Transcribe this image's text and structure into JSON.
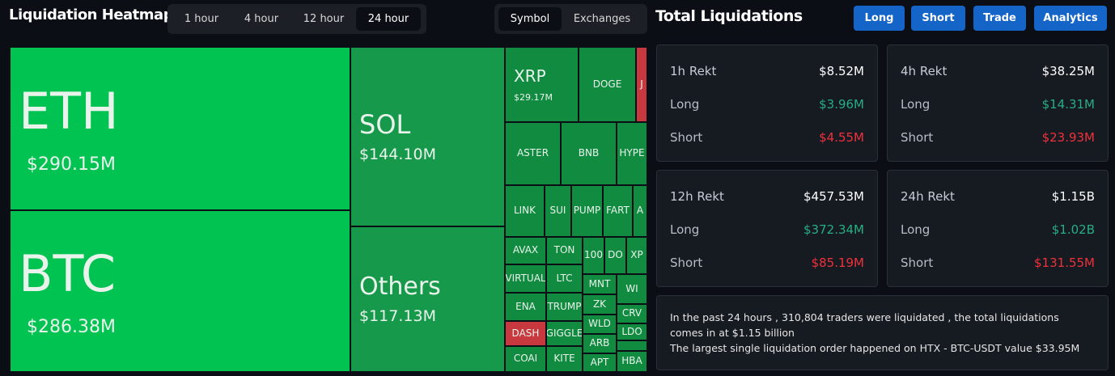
{
  "header": {
    "title": "Liquidation Heatmap",
    "time_tabs": [
      "1 hour",
      "4 hour",
      "12 hour",
      "24 hour"
    ],
    "active_time_tab": 3,
    "view_tabs": [
      "Symbol",
      "Exchanges"
    ],
    "active_view_tab": 0
  },
  "treemap": {
    "tiles": [
      {
        "symbol": "ETH",
        "value": "$290.15M",
        "color": "#00c352"
      },
      {
        "symbol": "BTC",
        "value": "$286.38M",
        "color": "#00c352"
      },
      {
        "symbol": "SOL",
        "value": "$144.10M",
        "color": "#16994a"
      },
      {
        "symbol": "Others",
        "value": "$117.13M",
        "color": "#16994a"
      },
      {
        "symbol": "XRP",
        "value": "$29.17M",
        "color": "#118b40"
      },
      {
        "symbol": "DOGE",
        "color": "#118b40"
      },
      {
        "symbol": "J",
        "color": "#c8393f"
      },
      {
        "symbol": "ASTER",
        "color": "#118b40"
      },
      {
        "symbol": "BNB",
        "color": "#118b40"
      },
      {
        "symbol": "HYPE",
        "color": "#118b40"
      },
      {
        "symbol": "LINK",
        "color": "#118b40"
      },
      {
        "symbol": "SUI",
        "color": "#118b40"
      },
      {
        "symbol": "PUMP",
        "color": "#118b40"
      },
      {
        "symbol": "FART",
        "color": "#118b40"
      },
      {
        "symbol": "A",
        "color": "#118b40"
      },
      {
        "symbol": "AVAX",
        "color": "#118b40"
      },
      {
        "symbol": "TON",
        "color": "#118b40"
      },
      {
        "symbol": "100",
        "color": "#118b40"
      },
      {
        "symbol": "DO",
        "color": "#118b40"
      },
      {
        "symbol": "XP",
        "color": "#118b40"
      },
      {
        "symbol": "VIRTUAL",
        "color": "#118b40"
      },
      {
        "symbol": "LTC",
        "color": "#118b40"
      },
      {
        "symbol": "MNT",
        "color": "#118b40"
      },
      {
        "symbol": "WI",
        "color": "#118b40"
      },
      {
        "symbol": "ENA",
        "color": "#118b40"
      },
      {
        "symbol": "TRUMP",
        "color": "#118b40"
      },
      {
        "symbol": "ZK",
        "color": "#118b40"
      },
      {
        "symbol": "CRV",
        "color": "#118b40"
      },
      {
        "symbol": "DASH",
        "color": "#c8393f"
      },
      {
        "symbol": "GIGGLE",
        "color": "#118b40"
      },
      {
        "symbol": "WLD",
        "color": "#118b40"
      },
      {
        "symbol": "LDO",
        "color": "#118b40"
      },
      {
        "symbol": "COAI",
        "color": "#118b40"
      },
      {
        "symbol": "KITE",
        "color": "#118b40"
      },
      {
        "symbol": "ARB",
        "color": "#118b40"
      },
      {
        "symbol": "APT",
        "color": "#118b40"
      },
      {
        "symbol": "HBA",
        "color": "#118b40"
      }
    ]
  },
  "panel": {
    "title": "Total Liquidations",
    "buttons": [
      "Long",
      "Short",
      "Trade",
      "Analytics"
    ],
    "cards": [
      {
        "title": "1h Rekt",
        "total": "$8.52M",
        "long_label": "Long",
        "long": "$3.96M",
        "short_label": "Short",
        "short": "$4.55M"
      },
      {
        "title": "4h Rekt",
        "total": "$38.25M",
        "long_label": "Long",
        "long": "$14.31M",
        "short_label": "Short",
        "short": "$23.93M"
      },
      {
        "title": "12h Rekt",
        "total": "$457.53M",
        "long_label": "Long",
        "long": "$372.34M",
        "short_label": "Short",
        "short": "$85.19M"
      },
      {
        "title": "24h Rekt",
        "total": "$1.15B",
        "long_label": "Long",
        "long": "$1.02B",
        "short_label": "Short",
        "short": "$131.55M"
      }
    ],
    "summary": [
      "In the past 24 hours , 310,804 traders were liquidated , the total liquidations comes in at $1.15 billion",
      "The largest single liquidation order happened on HTX - BTC-USDT value $33.95M"
    ]
  }
}
